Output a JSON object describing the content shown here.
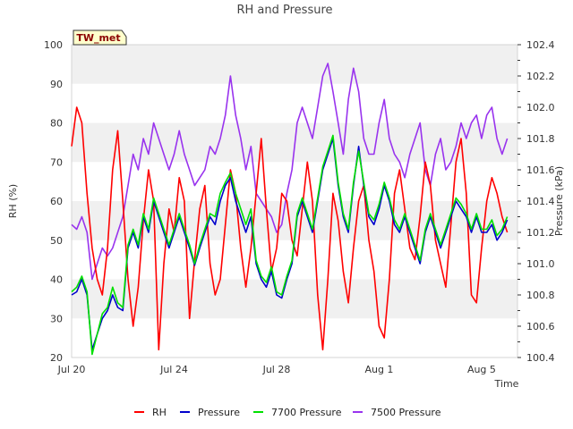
{
  "chart_data": {
    "type": "line",
    "title": "RH and Pressure",
    "xlabel": "Time",
    "ylabel_left": "RH (%)",
    "ylabel_right": "Pressure (kPa)",
    "badge": "TW_met",
    "x_range": [
      "Jul 20",
      "Aug 6"
    ],
    "x_ticks": [
      "Jul 20",
      "Jul 24",
      "Jul 28",
      "Aug 1",
      "Aug 5"
    ],
    "ylim_left": [
      20,
      100
    ],
    "yticks_left": [
      "20",
      "30",
      "40",
      "50",
      "60",
      "70",
      "80",
      "90",
      "100"
    ],
    "ylim_right": [
      100.4,
      102.4
    ],
    "yticks_right": [
      "100.4",
      "100.6",
      "100.8",
      "101.0",
      "101.2",
      "101.4",
      "101.6",
      "101.8",
      "102.0",
      "102.2",
      "102.4"
    ],
    "grid": "horizontal bands",
    "legend_position": "bottom",
    "colors": {
      "RH": "#ff0000",
      "Pressure": "#0000cc",
      "7700 Pressure": "#00e000",
      "7500 Pressure": "#9933ee"
    },
    "series": [
      {
        "name": "RH",
        "axis": "left",
        "color": "#ff0000",
        "x": [
          0,
          0.2,
          0.4,
          0.6,
          0.8,
          1.0,
          1.2,
          1.4,
          1.6,
          1.8,
          2.0,
          2.2,
          2.4,
          2.6,
          2.8,
          3.0,
          3.2,
          3.4,
          3.6,
          3.8,
          4.0,
          4.2,
          4.4,
          4.6,
          4.8,
          5.0,
          5.2,
          5.4,
          5.6,
          5.8,
          6.0,
          6.2,
          6.4,
          6.6,
          6.8,
          7.0,
          7.2,
          7.4,
          7.6,
          7.8,
          8.0,
          8.2,
          8.4,
          8.6,
          8.8,
          9.0,
          9.2,
          9.4,
          9.6,
          9.8,
          10.0,
          10.2,
          10.4,
          10.6,
          10.8,
          11.0,
          11.2,
          11.4,
          11.6,
          11.8,
          12.0,
          12.2,
          12.4,
          12.6,
          12.8,
          13.0,
          13.2,
          13.4,
          13.6,
          13.8,
          14.0,
          14.2,
          14.4,
          14.6,
          14.8,
          15.0,
          15.2,
          15.4,
          15.6,
          15.8,
          16.0,
          16.2,
          16.4,
          16.6,
          16.8,
          17.0
        ],
        "values": [
          74,
          84,
          80,
          62,
          48,
          40,
          36,
          48,
          68,
          78,
          60,
          40,
          28,
          38,
          55,
          68,
          60,
          22,
          44,
          58,
          52,
          66,
          60,
          30,
          45,
          58,
          64,
          44,
          36,
          40,
          54,
          68,
          62,
          48,
          38,
          48,
          62,
          76,
          58,
          42,
          48,
          62,
          60,
          50,
          46,
          58,
          70,
          60,
          36,
          22,
          40,
          62,
          55,
          42,
          34,
          48,
          60,
          64,
          50,
          42,
          28,
          25,
          40,
          62,
          68,
          58,
          48,
          45,
          56,
          70,
          64,
          50,
          44,
          38,
          54,
          70,
          76,
          62,
          36,
          34,
          48,
          60,
          66,
          62,
          56,
          52
        ]
      },
      {
        "name": "Pressure",
        "axis": "right",
        "color": "#0000cc",
        "x": [
          0,
          0.2,
          0.4,
          0.6,
          0.8,
          1.0,
          1.2,
          1.4,
          1.6,
          1.8,
          2.0,
          2.2,
          2.4,
          2.6,
          2.8,
          3.0,
          3.2,
          3.4,
          3.6,
          3.8,
          4.0,
          4.2,
          4.4,
          4.6,
          4.8,
          5.0,
          5.2,
          5.4,
          5.6,
          5.8,
          6.0,
          6.2,
          6.4,
          6.6,
          6.8,
          7.0,
          7.2,
          7.4,
          7.6,
          7.8,
          8.0,
          8.2,
          8.4,
          8.6,
          8.8,
          9.0,
          9.2,
          9.4,
          9.6,
          9.8,
          10.0,
          10.2,
          10.4,
          10.6,
          10.8,
          11.0,
          11.2,
          11.4,
          11.6,
          11.8,
          12.0,
          12.2,
          12.4,
          12.6,
          12.8,
          13.0,
          13.2,
          13.4,
          13.6,
          13.8,
          14.0,
          14.2,
          14.4,
          14.6,
          14.8,
          15.0,
          15.2,
          15.4,
          15.6,
          15.8,
          16.0,
          16.2,
          16.4,
          16.6,
          16.8,
          17.0
        ],
        "values": [
          100.8,
          100.82,
          100.9,
          100.8,
          100.45,
          100.55,
          100.65,
          100.7,
          100.8,
          100.72,
          100.7,
          101.1,
          101.2,
          101.1,
          101.3,
          101.2,
          101.4,
          101.3,
          101.2,
          101.1,
          101.2,
          101.3,
          101.2,
          101.1,
          100.99,
          101.1,
          101.2,
          101.3,
          101.25,
          101.4,
          101.5,
          101.55,
          101.4,
          101.3,
          101.2,
          101.3,
          101.0,
          100.9,
          100.85,
          100.95,
          100.8,
          100.78,
          100.9,
          101.0,
          101.3,
          101.4,
          101.3,
          101.2,
          101.4,
          101.6,
          101.7,
          101.8,
          101.5,
          101.3,
          101.2,
          101.5,
          101.75,
          101.5,
          101.3,
          101.25,
          101.35,
          101.5,
          101.4,
          101.25,
          101.2,
          101.3,
          101.2,
          101.1,
          101.0,
          101.2,
          101.3,
          101.2,
          101.1,
          101.2,
          101.3,
          101.4,
          101.35,
          101.3,
          101.2,
          101.3,
          101.2,
          101.2,
          101.25,
          101.15,
          101.2,
          101.28
        ]
      },
      {
        "name": "7700 Pressure",
        "axis": "right",
        "color": "#00e000",
        "x": [
          0,
          0.2,
          0.4,
          0.6,
          0.8,
          1.0,
          1.2,
          1.4,
          1.6,
          1.8,
          2.0,
          2.2,
          2.4,
          2.6,
          2.8,
          3.0,
          3.2,
          3.4,
          3.6,
          3.8,
          4.0,
          4.2,
          4.4,
          4.6,
          4.8,
          5.0,
          5.2,
          5.4,
          5.6,
          5.8,
          6.0,
          6.2,
          6.4,
          6.6,
          6.8,
          7.0,
          7.2,
          7.4,
          7.6,
          7.8,
          8.0,
          8.2,
          8.4,
          8.6,
          8.8,
          9.0,
          9.2,
          9.4,
          9.6,
          9.8,
          10.0,
          10.2,
          10.4,
          10.6,
          10.8,
          11.0,
          11.2,
          11.4,
          11.6,
          11.8,
          12.0,
          12.2,
          12.4,
          12.6,
          12.8,
          13.0,
          13.2,
          13.4,
          13.6,
          13.8,
          14.0,
          14.2,
          14.4,
          14.6,
          14.8,
          15.0,
          15.2,
          15.4,
          15.6,
          15.8,
          16.0,
          16.2,
          16.4,
          16.6,
          16.8,
          17.0
        ],
        "values": [
          100.82,
          100.85,
          100.92,
          100.82,
          100.42,
          100.55,
          100.68,
          100.72,
          100.85,
          100.75,
          100.72,
          101.12,
          101.22,
          101.12,
          101.32,
          101.22,
          101.42,
          101.32,
          101.22,
          101.12,
          101.22,
          101.32,
          101.22,
          101.12,
          101.0,
          101.12,
          101.22,
          101.32,
          101.3,
          101.45,
          101.52,
          101.58,
          101.45,
          101.35,
          101.25,
          101.35,
          101.02,
          100.92,
          100.88,
          100.98,
          100.82,
          100.8,
          100.92,
          101.02,
          101.32,
          101.42,
          101.32,
          101.22,
          101.42,
          101.62,
          101.72,
          101.82,
          101.52,
          101.32,
          101.22,
          101.52,
          101.72,
          101.52,
          101.32,
          101.28,
          101.38,
          101.52,
          101.42,
          101.28,
          101.22,
          101.32,
          101.22,
          101.12,
          101.02,
          101.22,
          101.32,
          101.22,
          101.12,
          101.22,
          101.32,
          101.42,
          101.38,
          101.32,
          101.22,
          101.32,
          101.22,
          101.22,
          101.28,
          101.18,
          101.22,
          101.3
        ]
      },
      {
        "name": "7500 Pressure",
        "axis": "right",
        "color": "#9933ee",
        "x": [
          0,
          0.2,
          0.4,
          0.6,
          0.8,
          1.0,
          1.2,
          1.4,
          1.6,
          1.8,
          2.0,
          2.2,
          2.4,
          2.6,
          2.8,
          3.0,
          3.2,
          3.4,
          3.6,
          3.8,
          4.0,
          4.2,
          4.4,
          4.6,
          4.8,
          5.0,
          5.2,
          5.4,
          5.6,
          5.8,
          6.0,
          6.2,
          6.4,
          6.6,
          6.8,
          7.0,
          7.2,
          7.4,
          7.6,
          7.8,
          8.0,
          8.2,
          8.4,
          8.6,
          8.8,
          9.0,
          9.2,
          9.4,
          9.6,
          9.8,
          10.0,
          10.2,
          10.4,
          10.6,
          10.8,
          11.0,
          11.2,
          11.4,
          11.6,
          11.8,
          12.0,
          12.2,
          12.4,
          12.6,
          12.8,
          13.0,
          13.2,
          13.4,
          13.6,
          13.8,
          14.0,
          14.2,
          14.4,
          14.6,
          14.8,
          15.0,
          15.2,
          15.4,
          15.6,
          15.8,
          16.0,
          16.2,
          16.4,
          16.6,
          16.8,
          17.0
        ],
        "values": [
          101.25,
          101.22,
          101.3,
          101.2,
          100.9,
          101.0,
          101.1,
          101.05,
          101.1,
          101.2,
          101.3,
          101.5,
          101.7,
          101.6,
          101.8,
          101.7,
          101.9,
          101.8,
          101.7,
          101.6,
          101.7,
          101.85,
          101.7,
          101.6,
          101.5,
          101.55,
          101.6,
          101.75,
          101.7,
          101.8,
          101.95,
          102.2,
          101.95,
          101.8,
          101.6,
          101.75,
          101.45,
          101.4,
          101.35,
          101.3,
          101.2,
          101.25,
          101.45,
          101.6,
          101.9,
          102.0,
          101.9,
          101.8,
          102.0,
          102.2,
          102.28,
          102.1,
          101.9,
          101.7,
          102.05,
          102.25,
          102.1,
          101.8,
          101.7,
          101.7,
          101.9,
          102.05,
          101.8,
          101.7,
          101.65,
          101.55,
          101.7,
          101.8,
          101.9,
          101.6,
          101.5,
          101.7,
          101.8,
          101.6,
          101.65,
          101.75,
          101.9,
          101.8,
          101.9,
          101.95,
          101.8,
          101.95,
          102.0,
          101.8,
          101.7,
          101.8
        ]
      }
    ]
  }
}
